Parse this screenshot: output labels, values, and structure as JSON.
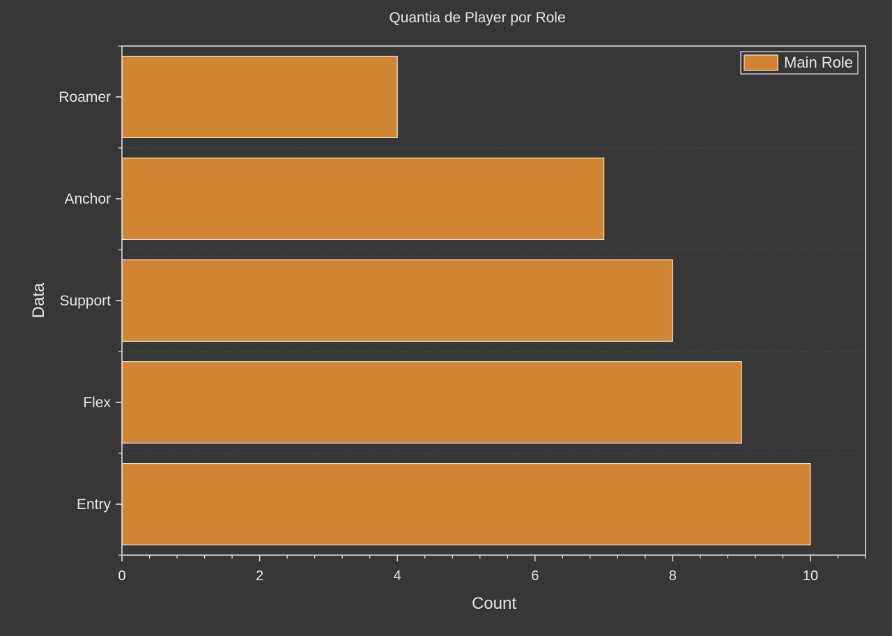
{
  "chart_data": {
    "type": "bar",
    "orientation": "horizontal",
    "title": "Quantia de Player por Role",
    "xlabel": "Count",
    "ylabel": "Data",
    "categories": [
      "Roamer",
      "Anchor",
      "Support",
      "Flex",
      "Entry"
    ],
    "series": [
      {
        "name": "Main Role",
        "values": [
          4,
          7,
          8,
          9,
          10
        ]
      }
    ],
    "xlim": [
      0,
      10.8
    ],
    "x_ticks": [
      0,
      2,
      4,
      6,
      8,
      10
    ],
    "x_minor_step": 0.4,
    "grid": true,
    "grid_style": "dashed, horizontal only",
    "legend_position": "top-right",
    "colors": {
      "background": "#373737",
      "bar_fill": "#D08532",
      "bar_edge": "#F2E6D6",
      "text": "#E6E6E6",
      "axis": "#E6E6E6",
      "grid": "#4A4A4A"
    }
  }
}
